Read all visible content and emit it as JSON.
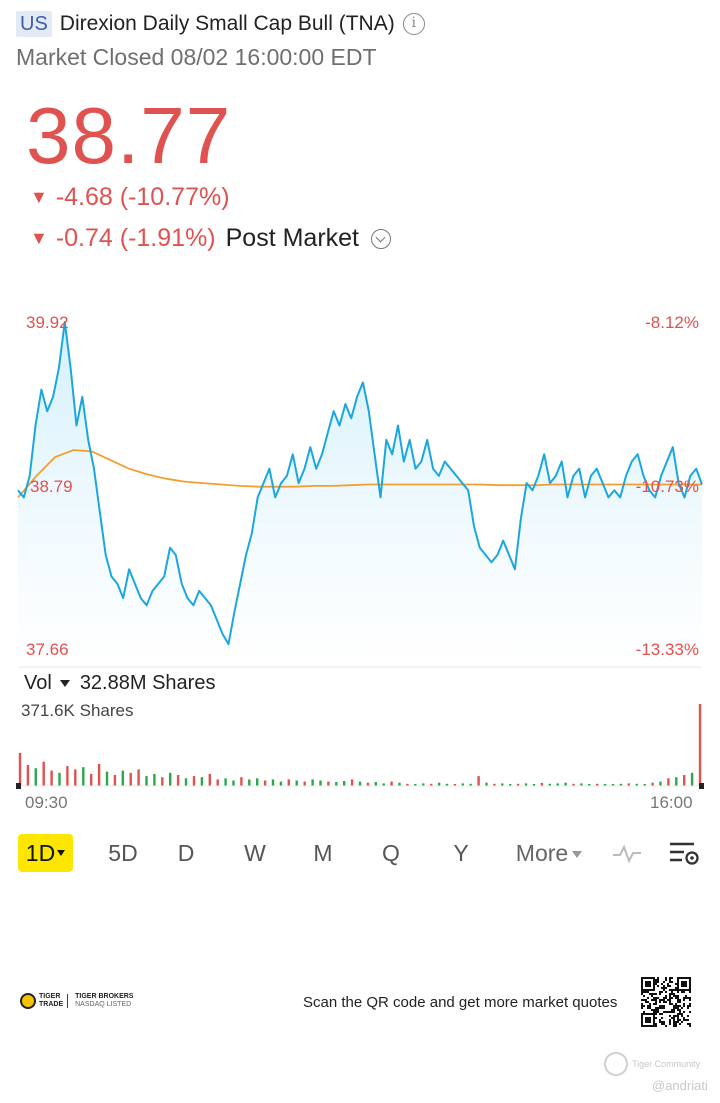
{
  "header": {
    "market": "US",
    "name": "Direxion Daily Small Cap Bull (TNA)",
    "status": "Market Closed 08/02 16:00:00 EDT"
  },
  "quote": {
    "price": "38.77",
    "change": "-4.68 (-10.77%)",
    "post_change": "-0.74 (-1.91%)",
    "post_label": "Post Market"
  },
  "colors": {
    "down": "#e0524f",
    "up": "#2aa84a",
    "price_line": "#1aa7e0",
    "avg_line": "#f0a030",
    "active_period": "#ffe600"
  },
  "chart_data": [
    {
      "type": "line",
      "title": "",
      "x_range": [
        "09:30",
        "16:00"
      ],
      "x_ticks": [
        "09:30",
        "16:00"
      ],
      "ylim": [
        37.66,
        39.92
      ],
      "y_left_labels": [
        "39.92",
        "38.79",
        "37.66"
      ],
      "y_right_labels": [
        "-8.12%",
        "-10.73%",
        "-13.33%"
      ],
      "series": [
        {
          "role": "price",
          "values": [
            38.75,
            38.7,
            38.85,
            39.2,
            39.45,
            39.3,
            39.4,
            39.6,
            39.92,
            39.6,
            39.2,
            39.4,
            39.1,
            38.9,
            38.6,
            38.3,
            38.15,
            38.1,
            38.0,
            38.2,
            38.1,
            38.0,
            37.95,
            38.05,
            38.1,
            38.15,
            38.35,
            38.3,
            38.1,
            38.0,
            37.95,
            38.05,
            38.0,
            37.95,
            37.85,
            37.75,
            37.68,
            37.9,
            38.1,
            38.3,
            38.45,
            38.7,
            38.8,
            38.9,
            38.7,
            38.8,
            38.85,
            39.0,
            38.8,
            38.9,
            39.05,
            38.9,
            39.0,
            39.15,
            39.3,
            39.2,
            39.35,
            39.25,
            39.4,
            39.5,
            39.3,
            39.0,
            38.7,
            39.1,
            39.0,
            39.2,
            38.95,
            39.1,
            38.9,
            38.95,
            39.1,
            38.9,
            38.85,
            38.95,
            38.9,
            38.85,
            38.8,
            38.75,
            38.5,
            38.35,
            38.3,
            38.25,
            38.3,
            38.4,
            38.3,
            38.2,
            38.55,
            38.8,
            38.75,
            38.85,
            39.0,
            38.8,
            38.85,
            38.95,
            38.7,
            38.85,
            38.9,
            38.7,
            38.85,
            38.9,
            38.8,
            38.7,
            38.75,
            38.7,
            38.85,
            38.95,
            39.0,
            38.85,
            38.75,
            38.7,
            38.85,
            38.95,
            39.05,
            38.8,
            38.7,
            38.85,
            38.9,
            38.79
          ],
          "note_note_placeholder": ""
        },
        {
          "role": "average",
          "values": [
            38.7,
            38.85,
            38.98,
            39.03,
            39.02,
            38.96,
            38.9,
            38.86,
            38.83,
            38.81,
            38.8,
            38.79,
            38.78,
            38.775,
            38.775,
            38.775,
            38.78,
            38.78,
            38.785,
            38.79,
            38.79,
            38.79,
            38.79,
            38.79,
            38.79,
            38.79,
            38.785,
            38.785,
            38.785,
            38.79,
            38.79,
            38.79,
            38.79,
            38.79,
            38.79,
            38.79,
            38.79,
            38.79
          ]
        }
      ]
    },
    {
      "type": "bar",
      "title": "",
      "ylabel_selector": "Vol",
      "total_volume": "32.88M Shares",
      "max_label": "371.6K Shares",
      "x_ticks": [
        "09:30",
        "16:00"
      ],
      "ylim": [
        0,
        371.6
      ],
      "values": [
        150,
        95,
        80,
        110,
        70,
        60,
        90,
        75,
        85,
        55,
        100,
        65,
        50,
        70,
        60,
        75,
        45,
        55,
        40,
        60,
        50,
        35,
        45,
        40,
        55,
        30,
        35,
        25,
        40,
        30,
        35,
        25,
        30,
        20,
        30,
        25,
        20,
        30,
        25,
        20,
        18,
        22,
        30,
        20,
        15,
        18,
        12,
        20,
        15,
        10,
        8,
        12,
        10,
        15,
        10,
        8,
        12,
        10,
        45,
        15,
        10,
        12,
        8,
        10,
        12,
        8,
        14,
        10,
        12,
        15,
        10,
        12,
        8,
        10,
        9,
        8,
        10,
        12,
        10,
        8,
        15,
        20,
        35,
        40,
        50,
        60,
        371.6
      ],
      "colors": [
        "down",
        "down",
        "up",
        "down",
        "down",
        "up",
        "down",
        "down",
        "up",
        "down",
        "down",
        "up",
        "down",
        "up",
        "down",
        "down",
        "up",
        "up",
        "down",
        "up",
        "down",
        "up",
        "down",
        "up",
        "down",
        "down",
        "up",
        "up",
        "down",
        "up",
        "up",
        "down",
        "up",
        "up",
        "down",
        "up",
        "down",
        "up",
        "up",
        "down",
        "up",
        "up",
        "down",
        "up",
        "down",
        "up",
        "up",
        "down",
        "up",
        "down",
        "up",
        "up",
        "down",
        "up",
        "up",
        "down",
        "up",
        "up",
        "down",
        "up",
        "down",
        "up",
        "up",
        "down",
        "up",
        "up",
        "down",
        "up",
        "up",
        "up",
        "down",
        "up",
        "up",
        "down",
        "up",
        "up",
        "up",
        "down",
        "up",
        "up",
        "down",
        "up",
        "down",
        "up",
        "down",
        "up",
        "down"
      ]
    }
  ],
  "periods": [
    "5D",
    "D",
    "W",
    "M",
    "Q",
    "Y"
  ],
  "period_active": "1D",
  "period_more": "More",
  "period_icons": [
    "line-icon",
    "settings-icon"
  ],
  "footer": {
    "logo_line1": "TIGER",
    "logo_line2": "TRADE",
    "logo_brand": "TIGER BROKERS",
    "logo_sub": "NASDAQ LISTED",
    "qr_text": "Scan the QR code and get more market quotes"
  },
  "watermark": {
    "community": "Tiger Community",
    "user": "@andriati"
  }
}
